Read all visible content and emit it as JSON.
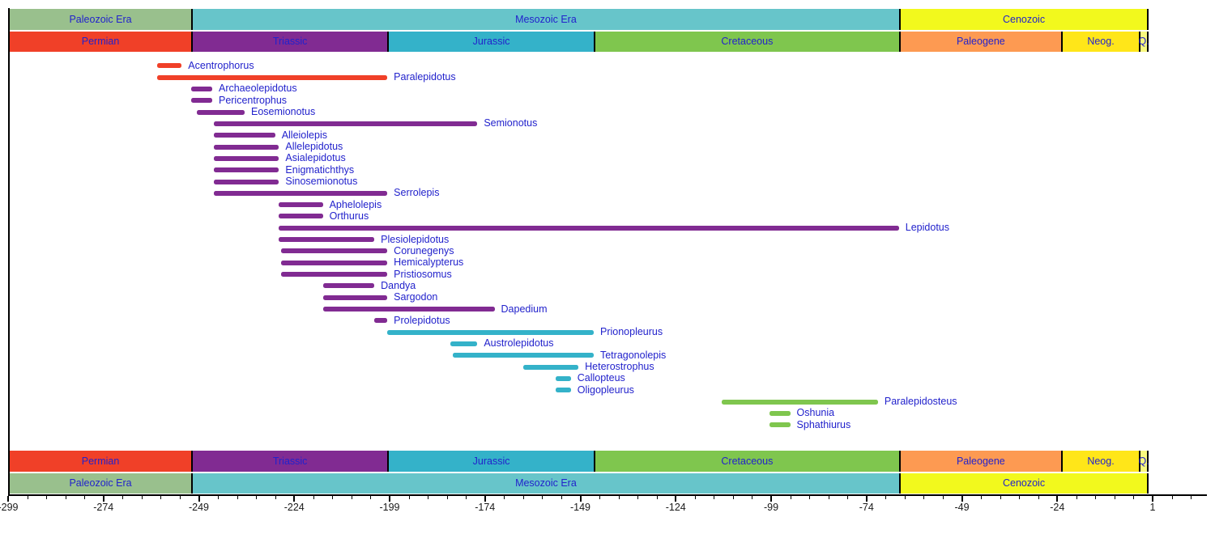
{
  "colors": {
    "label_blue": "#2222CC",
    "axis_text": "#1a1a1a",
    "boundary_line": "#000000",
    "background": "#ffffff"
  },
  "chart_data": {
    "type": "bar",
    "subtype": "geological-taxon-range-timeline",
    "title": "",
    "xlabel": "",
    "ylabel": "",
    "xlim": [
      -299,
      15
    ],
    "grid": false,
    "legend": "none",
    "axis": {
      "major_ticks": [
        -299,
        -274,
        -249,
        -224,
        -199,
        -174,
        -149,
        -124,
        -99,
        -74,
        -49,
        -24,
        1
      ],
      "major_tick_labels": [
        "-299",
        "-274",
        "-249",
        "-224",
        "-199",
        "-174",
        "-149",
        "-124",
        "-99",
        "-74",
        "-49",
        "-24",
        "1"
      ],
      "minor_tick_step": 5
    },
    "eras": [
      {
        "label": "Paleozoic Era",
        "start": -299,
        "end": -251,
        "color": "#99C08D"
      },
      {
        "label": "Mesozoic Era",
        "start": -251,
        "end": -65.5,
        "color": "#67C5CA"
      },
      {
        "label": "Cenozoic",
        "start": -65.5,
        "end": 0,
        "color": "#F2F91D"
      }
    ],
    "periods": [
      {
        "label": "Permian",
        "start": -299,
        "end": -251,
        "color": "#F04028"
      },
      {
        "label": "Triassic",
        "start": -251,
        "end": -199.6,
        "color": "#812B92"
      },
      {
        "label": "Jurassic",
        "start": -199.6,
        "end": -145.5,
        "color": "#34B2C9"
      },
      {
        "label": "Cretaceous",
        "start": -145.5,
        "end": -65.5,
        "color": "#7FC64E"
      },
      {
        "label": "Paleogene",
        "start": -65.5,
        "end": -23,
        "color": "#FD9A52"
      },
      {
        "label": "Neog.",
        "start": -23,
        "end": -2.6,
        "color": "#FFE619"
      },
      {
        "label": "Q.",
        "start": -2.6,
        "end": 0,
        "color": "#F9F97F"
      }
    ],
    "taxa": [
      {
        "name": "Acentrophorus",
        "start": -260,
        "end": -253.5,
        "color": "#F04028"
      },
      {
        "name": "Paralepidotus",
        "start": -260,
        "end": -199.6,
        "color": "#F04028"
      },
      {
        "name": "Archaeolepidotus",
        "start": -251,
        "end": -245.5,
        "color": "#812B92"
      },
      {
        "name": "Pericentrophus",
        "start": -251,
        "end": -245.5,
        "color": "#812B92"
      },
      {
        "name": "Eosemionotus",
        "start": -249.5,
        "end": -237,
        "color": "#812B92"
      },
      {
        "name": "Semionotus",
        "start": -245,
        "end": -176,
        "color": "#812B92"
      },
      {
        "name": "Alleiolepis",
        "start": -245,
        "end": -229,
        "color": "#812B92"
      },
      {
        "name": "Allelepidotus",
        "start": -245,
        "end": -228,
        "color": "#812B92"
      },
      {
        "name": "Asialepidotus",
        "start": -245,
        "end": -228,
        "color": "#812B92"
      },
      {
        "name": "Enigmatichthys",
        "start": -245,
        "end": -228,
        "color": "#812B92"
      },
      {
        "name": "Sinosemionotus",
        "start": -245,
        "end": -228,
        "color": "#812B92"
      },
      {
        "name": "Serrolepis",
        "start": -245,
        "end": -199.6,
        "color": "#812B92"
      },
      {
        "name": "Aphelolepis",
        "start": -228,
        "end": -216.5,
        "color": "#812B92"
      },
      {
        "name": "Orthurus",
        "start": -228,
        "end": -216.5,
        "color": "#812B92"
      },
      {
        "name": "Lepidotus",
        "start": -228,
        "end": -65.5,
        "color": "#812B92"
      },
      {
        "name": "Plesiolepidotus",
        "start": -228,
        "end": -203,
        "color": "#812B92"
      },
      {
        "name": "Corunegenys",
        "start": -227.5,
        "end": -199.6,
        "color": "#812B92"
      },
      {
        "name": "Hemicalypterus",
        "start": -227.5,
        "end": -199.6,
        "color": "#812B92"
      },
      {
        "name": "Pristiosomus",
        "start": -227.5,
        "end": -199.6,
        "color": "#812B92"
      },
      {
        "name": "Dandya",
        "start": -216.5,
        "end": -203,
        "color": "#812B92"
      },
      {
        "name": "Sargodon",
        "start": -216.5,
        "end": -199.6,
        "color": "#812B92"
      },
      {
        "name": "Dapedium",
        "start": -216.5,
        "end": -171.5,
        "color": "#812B92"
      },
      {
        "name": "Prolepidotus",
        "start": -203,
        "end": -199.6,
        "color": "#812B92"
      },
      {
        "name": "Prionopleurus",
        "start": -199.6,
        "end": -145.5,
        "color": "#34B2C9"
      },
      {
        "name": "Austrolepidotus",
        "start": -183,
        "end": -176,
        "color": "#34B2C9"
      },
      {
        "name": "Tetragonolepis",
        "start": -182.5,
        "end": -145.5,
        "color": "#34B2C9"
      },
      {
        "name": "Heterostrophus",
        "start": -164,
        "end": -149.5,
        "color": "#34B2C9"
      },
      {
        "name": "Callopteus",
        "start": -155.5,
        "end": -151.5,
        "color": "#34B2C9"
      },
      {
        "name": "Oligopleurus",
        "start": -155.5,
        "end": -151.5,
        "color": "#34B2C9"
      },
      {
        "name": "Paralepidosteus",
        "start": -112,
        "end": -71,
        "color": "#7FC64E"
      },
      {
        "name": "Oshunia",
        "start": -99.5,
        "end": -94,
        "color": "#7FC64E"
      },
      {
        "name": "Sphathiurus",
        "start": -99.5,
        "end": -94,
        "color": "#7FC64E"
      }
    ]
  }
}
